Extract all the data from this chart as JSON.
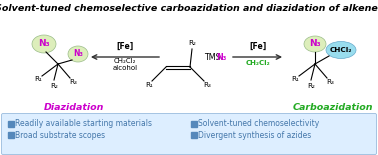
{
  "title": "Solvent-tuned chemoselective carboazidation and diazidation of alkenes",
  "title_fontsize": 6.8,
  "bg_color": "#ffffff",
  "bottom_bg_color": "#ddeeff",
  "bottom_border_color": "#99bbdd",
  "bullet_color": "#5588bb",
  "bullet_text_color": "#4477aa",
  "bullet_items_left": [
    "Readily available starting materials",
    "Broad substrate scopes"
  ],
  "bullet_items_right": [
    "Solvent-tuned chemoselectivity",
    "Divergent synthesis of azides"
  ],
  "diazidation_color": "#cc00cc",
  "carboazidation_color": "#22aa22",
  "n3_bubble_color": "#ddeebb",
  "n3_bubble_edge": "#99bb88",
  "chcl2_bubble_color": "#99ddee",
  "chcl2_bubble_edge": "#66aacc",
  "arrow_color": "#333333",
  "solvent_right_color": "#22aa22",
  "fe_fontsize": 5.5,
  "label_fontsize": 6.8,
  "mol_fontsize": 5.2,
  "bullet_fontsize": 5.5
}
